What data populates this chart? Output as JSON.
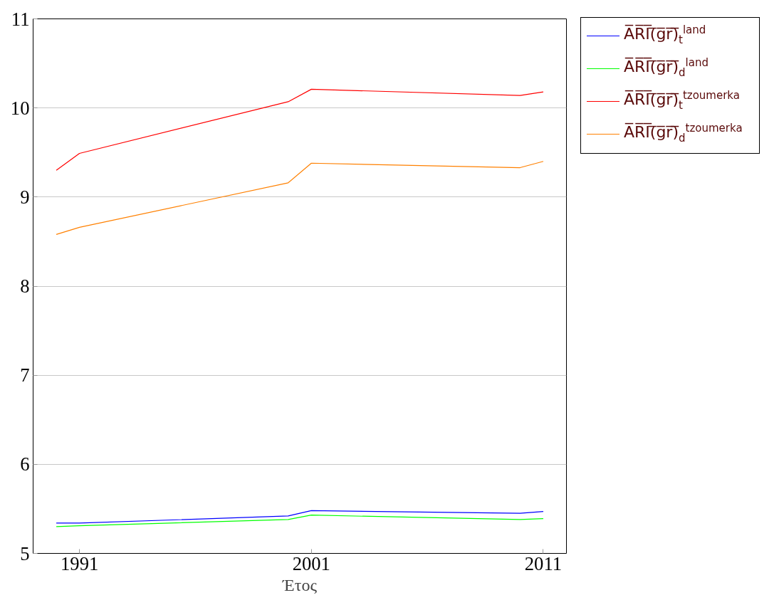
{
  "chart_data": {
    "type": "line",
    "xlabel": "Έτος",
    "x": [
      1990,
      1991,
      2000,
      2001,
      2010,
      2011
    ],
    "series": [
      {
        "name": "A̅R̅I̅(̅g̅r̅)̅$_{t}$$^{land}$",
        "color": "#0000ff",
        "values": [
          5.34,
          5.34,
          5.42,
          5.48,
          5.45,
          5.47
        ]
      },
      {
        "name": "A̅R̅I̅(̅g̅r̅)̅$_{d}$$^{land}$",
        "color": "#00ff00",
        "values": [
          5.3,
          5.31,
          5.38,
          5.43,
          5.38,
          5.39
        ]
      },
      {
        "name": "A̅R̅I̅(̅g̅r̅)̅$_{t}$$^{tzoumerka}$",
        "color": "#ff0000",
        "values": [
          9.3,
          9.49,
          10.07,
          10.21,
          10.14,
          10.18
        ]
      },
      {
        "name": "A̅R̅I̅(̅g̅r̅)̅$_{d}$$^{tzoumerka}$",
        "color": "#ff8000",
        "values": [
          8.58,
          8.66,
          9.16,
          9.38,
          9.33,
          9.4
        ]
      }
    ],
    "xlim": [
      1989.0,
      2012.0
    ],
    "ylim": [
      5,
      11
    ],
    "xticks": [
      1991,
      2001,
      2011
    ],
    "yticks": [
      5,
      6,
      7,
      8,
      9,
      10,
      11
    ],
    "grid": "y",
    "legend": "right",
    "marker": "none",
    "line_style": "solid"
  }
}
